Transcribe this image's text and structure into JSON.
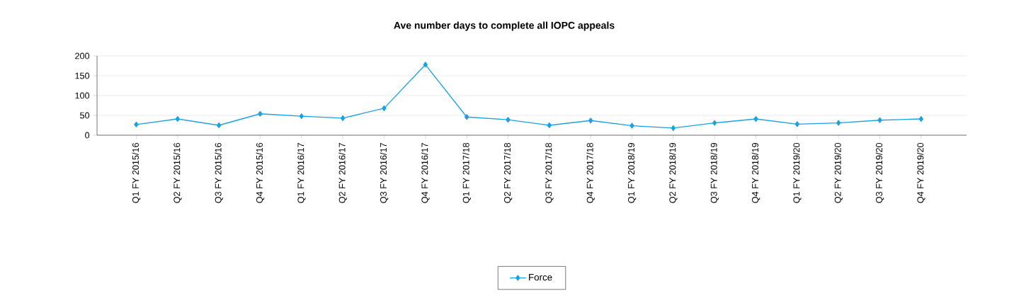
{
  "chart_data": {
    "type": "line",
    "title": "Ave number days to complete all IOPC appeals",
    "categories": [
      "Q1 FY 2015/16",
      "Q2 FY 2015/16",
      "Q3 FY 2015/16",
      "Q4 FY 2015/16",
      "Q1 FY 2016/17",
      "Q2 FY 2016/17",
      "Q3 FY 2016/17",
      "Q4 FY 2016/17",
      "Q1 FY 2017/18",
      "Q2 FY 2017/18",
      "Q3 FY 2017/18",
      "Q4 FY 2017/18",
      "Q1 FY 2018/19",
      "Q2 FY 2018/19",
      "Q3 FY 2018/19",
      "Q4 FY 2018/19",
      "Q1 FY 2019/20",
      "Q2 FY 2019/20",
      "Q3 FY 2019/20",
      "Q4 FY 2019/20"
    ],
    "series": [
      {
        "name": "Force",
        "color": "#1ba1e2",
        "values": [
          27,
          41,
          25,
          54,
          48,
          43,
          68,
          178,
          46,
          39,
          25,
          37,
          24,
          18,
          31,
          41,
          28,
          31,
          38,
          41
        ]
      }
    ],
    "ylim": [
      0,
      200
    ],
    "yticks": [
      0,
      50,
      100,
      150,
      200
    ],
    "grid": "y",
    "legend": "bottom",
    "marker": "diamond",
    "line_style": "solid"
  }
}
